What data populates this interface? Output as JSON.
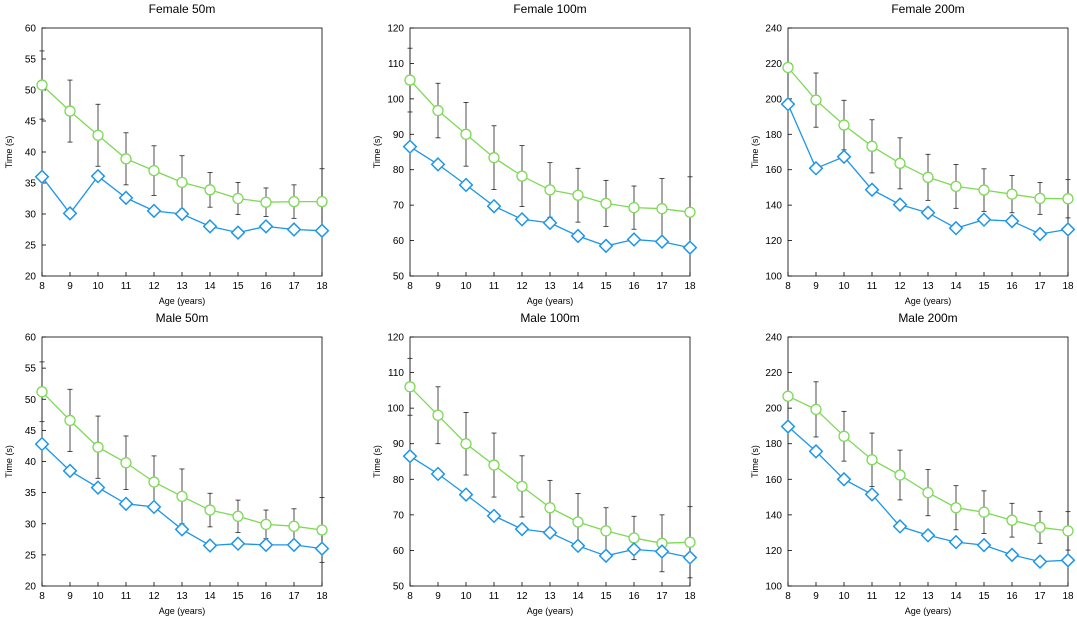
{
  "colors": {
    "green": "#7ED957",
    "blue": "#1E96E8",
    "error": "#222222",
    "axis": "#000000"
  },
  "chart_data": [
    {
      "type": "line",
      "title": "Female 50m",
      "xlabel": "Age (years)",
      "ylabel": "Time (s)",
      "ylim": [
        20,
        60
      ],
      "yticks": [
        20,
        25,
        30,
        35,
        40,
        45,
        50,
        55,
        60
      ],
      "x": [
        8,
        9,
        10,
        11,
        12,
        13,
        14,
        15,
        16,
        17,
        18
      ],
      "series": [
        {
          "name": "green-circle",
          "marker": "circle",
          "values": [
            50.8,
            46.6,
            42.7,
            38.9,
            37.0,
            35.1,
            33.9,
            32.5,
            31.9,
            32.0,
            32.0
          ],
          "errors": [
            5.5,
            5.0,
            5.0,
            4.2,
            4.0,
            4.3,
            2.8,
            2.6,
            2.3,
            2.7,
            5.3
          ]
        },
        {
          "name": "blue-diamond",
          "marker": "diamond",
          "values": [
            36.0,
            30.1,
            36.1,
            32.6,
            30.5,
            30.0,
            28.0,
            27.0,
            28.0,
            27.5,
            27.3
          ],
          "errors": []
        }
      ]
    },
    {
      "type": "line",
      "title": "Female 100m",
      "xlabel": "Age (years)",
      "ylabel": "Time (s)",
      "ylim": [
        50,
        120
      ],
      "yticks": [
        50,
        60,
        70,
        80,
        90,
        100,
        110,
        120
      ],
      "x": [
        8,
        9,
        10,
        11,
        12,
        13,
        14,
        15,
        16,
        17,
        18
      ],
      "series": [
        {
          "name": "green-circle",
          "marker": "circle",
          "values": [
            105.3,
            96.7,
            90.0,
            83.4,
            78.2,
            74.3,
            72.8,
            70.5,
            69.3,
            69.0,
            68.0
          ],
          "errors": [
            9.0,
            7.7,
            9.0,
            9.0,
            8.6,
            7.7,
            7.6,
            6.5,
            6.1,
            8.5,
            10.0
          ]
        },
        {
          "name": "blue-diamond",
          "marker": "diamond",
          "values": [
            86.5,
            81.5,
            75.7,
            69.7,
            66.0,
            65.0,
            61.3,
            58.5,
            60.3,
            59.7,
            58.0
          ],
          "errors": []
        }
      ]
    },
    {
      "type": "line",
      "title": "Female 200m",
      "xlabel": "Age (years)",
      "ylabel": "Time (s)",
      "ylim": [
        100,
        240
      ],
      "yticks": [
        100,
        120,
        140,
        160,
        180,
        200,
        220,
        240
      ],
      "x": [
        8,
        9,
        10,
        11,
        12,
        13,
        14,
        15,
        16,
        17,
        18
      ],
      "series": [
        {
          "name": "green-circle",
          "marker": "circle",
          "values": [
            217.7,
            199.3,
            185.2,
            173.2,
            163.6,
            155.7,
            150.6,
            148.5,
            146.2,
            143.8,
            143.6
          ],
          "errors": [
            0,
            15.3,
            14.0,
            15.0,
            14.4,
            13.0,
            12.4,
            12.0,
            10.5,
            9.0,
            10.8
          ]
        },
        {
          "name": "blue-diamond",
          "marker": "diamond",
          "values": [
            197.0,
            160.8,
            167.3,
            148.7,
            140.3,
            135.7,
            127.0,
            131.8,
            131.0,
            123.7,
            126.3
          ],
          "errors": []
        }
      ]
    },
    {
      "type": "line",
      "title": "Male 50m",
      "xlabel": "Age (years)",
      "ylabel": "Time (s)",
      "ylim": [
        20,
        60
      ],
      "yticks": [
        20,
        25,
        30,
        35,
        40,
        45,
        50,
        55,
        60
      ],
      "x": [
        8,
        9,
        10,
        11,
        12,
        13,
        14,
        15,
        16,
        17,
        18
      ],
      "series": [
        {
          "name": "green-circle",
          "marker": "circle",
          "values": [
            51.2,
            46.6,
            42.3,
            39.8,
            36.7,
            34.4,
            32.2,
            31.2,
            29.9,
            29.6,
            29.0
          ],
          "errors": [
            4.8,
            5.0,
            5.0,
            4.3,
            4.2,
            4.4,
            2.7,
            2.6,
            2.3,
            2.8,
            5.2
          ]
        },
        {
          "name": "blue-diamond",
          "marker": "diamond",
          "values": [
            42.8,
            38.5,
            35.8,
            33.2,
            32.7,
            29.1,
            26.5,
            26.8,
            26.6,
            26.6,
            26.0
          ],
          "errors": []
        }
      ]
    },
    {
      "type": "line",
      "title": "Male 100m",
      "xlabel": "Age (years)",
      "ylabel": "Time (s)",
      "ylim": [
        50,
        120
      ],
      "yticks": [
        50,
        60,
        70,
        80,
        90,
        100,
        110,
        120
      ],
      "x": [
        8,
        9,
        10,
        11,
        12,
        13,
        14,
        15,
        16,
        17,
        18
      ],
      "series": [
        {
          "name": "green-circle",
          "marker": "circle",
          "values": [
            106.0,
            98.0,
            90.0,
            84.0,
            78.0,
            72.0,
            68.0,
            65.5,
            63.5,
            62.0,
            62.3
          ],
          "errors": [
            8.0,
            8.0,
            8.8,
            9.0,
            8.6,
            7.7,
            8.0,
            6.5,
            6.1,
            8.0,
            10.0
          ]
        },
        {
          "name": "blue-diamond",
          "marker": "diamond",
          "values": [
            86.5,
            81.5,
            75.7,
            69.7,
            66.0,
            65.0,
            61.3,
            58.5,
            60.3,
            59.7,
            58.0
          ],
          "errors": []
        }
      ]
    },
    {
      "type": "line",
      "title": "Male 200m",
      "xlabel": "Age (years)",
      "ylabel": "Time (s)",
      "ylim": [
        100,
        240
      ],
      "yticks": [
        100,
        120,
        140,
        160,
        180,
        200,
        220,
        240
      ],
      "x": [
        8,
        9,
        10,
        11,
        12,
        13,
        14,
        15,
        16,
        17,
        18
      ],
      "series": [
        {
          "name": "green-circle",
          "marker": "circle",
          "values": [
            206.7,
            199.3,
            184.2,
            171.0,
            162.4,
            152.5,
            144.0,
            141.5,
            137.0,
            133.0,
            131.0
          ],
          "errors": [
            0,
            15.5,
            14.0,
            15.0,
            14.0,
            13.0,
            12.4,
            12.0,
            9.5,
            9.0,
            10.8
          ]
        },
        {
          "name": "blue-diamond",
          "marker": "diamond",
          "values": [
            189.7,
            175.7,
            160.0,
            151.5,
            133.5,
            128.5,
            124.7,
            123.0,
            117.5,
            113.7,
            114.5
          ],
          "errors": []
        }
      ]
    }
  ]
}
